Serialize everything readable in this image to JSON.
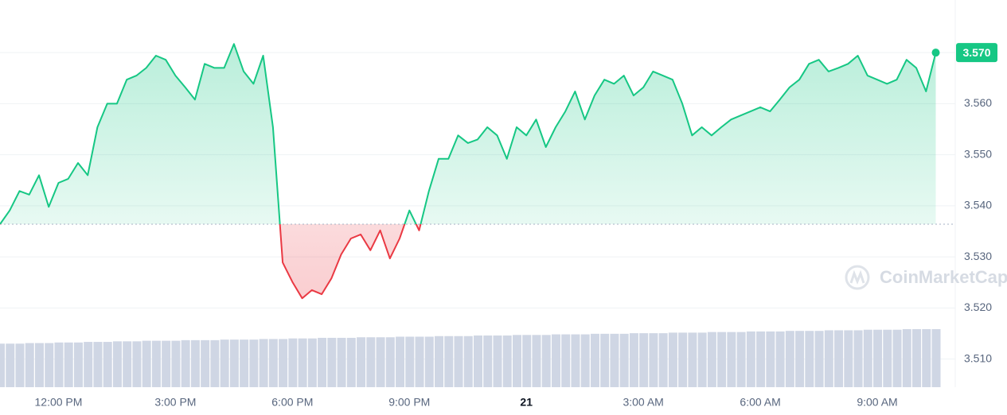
{
  "chart_data": {
    "type": "line",
    "x": [
      -1.5,
      -1.25,
      -1,
      -0.75,
      -0.5,
      -0.25,
      0,
      0.25,
      0.5,
      0.75,
      1,
      1.25,
      1.5,
      1.75,
      2,
      2.25,
      2.5,
      2.75,
      3,
      3.25,
      3.5,
      3.75,
      4,
      4.25,
      4.5,
      4.75,
      5,
      5.25,
      5.5,
      5.75,
      6,
      6.25,
      6.5,
      6.75,
      7,
      7.25,
      7.5,
      7.75,
      8,
      8.25,
      8.5,
      8.75,
      9,
      9.25,
      9.5,
      9.75,
      10,
      10.25,
      10.5,
      10.75,
      11,
      11.25,
      11.5,
      11.75,
      12,
      12.25,
      12.5,
      12.75,
      13,
      13.25,
      13.5,
      13.75,
      14,
      14.25,
      14.5,
      14.75,
      15,
      15.25,
      15.5,
      15.75,
      16,
      16.25,
      16.5,
      16.75,
      17,
      17.25,
      17.5,
      17.75,
      18,
      18.25,
      18.5,
      18.75,
      19,
      19.25,
      19.5,
      19.75,
      20,
      20.25,
      20.5,
      20.75,
      21,
      21.25,
      21.5,
      21.75,
      22,
      22.25,
      22.5
    ],
    "series": [
      {
        "name": "Price",
        "color": "#16c784",
        "down_color": "#ea3943",
        "values": [
          3.5364,
          3.5391,
          3.5429,
          3.5422,
          3.546,
          3.5398,
          3.5445,
          3.5453,
          3.5484,
          3.546,
          3.5554,
          3.56,
          3.56,
          3.5647,
          3.5655,
          3.567,
          3.5694,
          3.5686,
          3.5655,
          3.5632,
          3.5608,
          3.5678,
          3.567,
          3.567,
          3.5717,
          3.5663,
          3.5639,
          3.5694,
          3.5554,
          3.5289,
          3.5251,
          3.5219,
          3.5235,
          3.5227,
          3.5258,
          3.5305,
          3.5336,
          3.5344,
          3.5313,
          3.5352,
          3.5297,
          3.5336,
          3.5391,
          3.5352,
          3.5429,
          3.5492,
          3.5492,
          3.5538,
          3.5523,
          3.553,
          3.5554,
          3.5538,
          3.5492,
          3.5554,
          3.5538,
          3.5569,
          3.5515,
          3.5554,
          3.5585,
          3.5624,
          3.5569,
          3.5616,
          3.5647,
          3.5639,
          3.5655,
          3.5616,
          3.5632,
          3.5663,
          3.5655,
          3.5647,
          3.56,
          3.5538,
          3.5554,
          3.5538,
          3.5554,
          3.5569,
          3.5577,
          3.5585,
          3.5593,
          3.5585,
          3.5608,
          3.5632,
          3.5647,
          3.5678,
          3.5686,
          3.5663,
          3.567,
          3.5678,
          3.5694,
          3.5655,
          3.5647,
          3.5639,
          3.5647,
          3.5686,
          3.567,
          3.5624,
          3.57
        ]
      }
    ],
    "volume": {
      "color": "#cfd6e4",
      "values": [
        75,
        75,
        75,
        76,
        76,
        76,
        77,
        77,
        77,
        78,
        78,
        78,
        79,
        79,
        79,
        80,
        80,
        80,
        80,
        81,
        81,
        81,
        81,
        82,
        82,
        82,
        82,
        83,
        83,
        83,
        84,
        84,
        84,
        85,
        85,
        85,
        85,
        86,
        86,
        86,
        86,
        87,
        87,
        87,
        87,
        88,
        88,
        88,
        88,
        89,
        89,
        89,
        89,
        90,
        90,
        90,
        90,
        91,
        91,
        91,
        91,
        92,
        92,
        92,
        92,
        93,
        93,
        93,
        93,
        94,
        94,
        94,
        94,
        95,
        95,
        95,
        95,
        96,
        96,
        96,
        96,
        97,
        97,
        97,
        97,
        98,
        98,
        98,
        98,
        99,
        99,
        99,
        99,
        100,
        100,
        100,
        100
      ]
    },
    "price_tag": "3.570",
    "watermark": "CoinMarketCap",
    "xlim": [
      -1.5,
      23
    ],
    "ylim": [
      3.5045,
      3.5803
    ],
    "xticks": [
      {
        "value": 0,
        "label": "12:00 PM"
      },
      {
        "value": 3,
        "label": "3:00 PM"
      },
      {
        "value": 6,
        "label": "6:00 PM"
      },
      {
        "value": 9,
        "label": "9:00 PM"
      },
      {
        "value": 12,
        "label": "21"
      },
      {
        "value": 15,
        "label": "3:00 AM"
      },
      {
        "value": 18,
        "label": "6:00 AM"
      },
      {
        "value": 21,
        "label": "9:00 AM"
      }
    ],
    "yticks": [
      {
        "value": 3.57,
        "label": "3.570"
      },
      {
        "value": 3.56,
        "label": "3.560"
      },
      {
        "value": 3.55,
        "label": "3.550"
      },
      {
        "value": 3.54,
        "label": "3.540"
      },
      {
        "value": 3.53,
        "label": "3.530"
      },
      {
        "value": 3.52,
        "label": "3.520"
      },
      {
        "value": 3.51,
        "label": "3.510"
      }
    ],
    "grid": true
  }
}
